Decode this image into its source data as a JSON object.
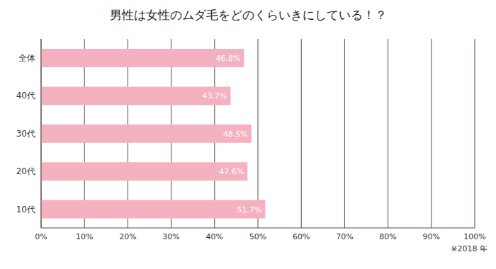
{
  "chart_data": {
    "type": "bar",
    "title": "男性は女性のムダ毛をどのくらいきにしている！？",
    "orientation": "horizontal",
    "categories": [
      "全体",
      "40代",
      "30代",
      "20代",
      "10代"
    ],
    "values": [
      46.8,
      43.7,
      48.5,
      47.6,
      51.7
    ],
    "value_labels": [
      "46.8%",
      "43.7%",
      "48.5%",
      "47.6%",
      "51.7%"
    ],
    "data_labels": true,
    "color": "#f4b1c0",
    "xlim": [
      0,
      100
    ],
    "xticks": [
      {
        "value": 0,
        "label": "0%"
      },
      {
        "value": 10,
        "label": "10%"
      },
      {
        "value": 20,
        "label": "20%"
      },
      {
        "value": 30,
        "label": "30%"
      },
      {
        "value": 40,
        "label": "40%"
      },
      {
        "value": 50,
        "label": "50%"
      },
      {
        "value": 60,
        "label": "60%"
      },
      {
        "value": 70,
        "label": "70%"
      },
      {
        "value": 80,
        "label": "80%"
      },
      {
        "value": 90,
        "label": "90%"
      },
      {
        "value": 100,
        "label": "100%"
      }
    ],
    "grid": true,
    "annotations": [
      "※2018 年"
    ]
  }
}
